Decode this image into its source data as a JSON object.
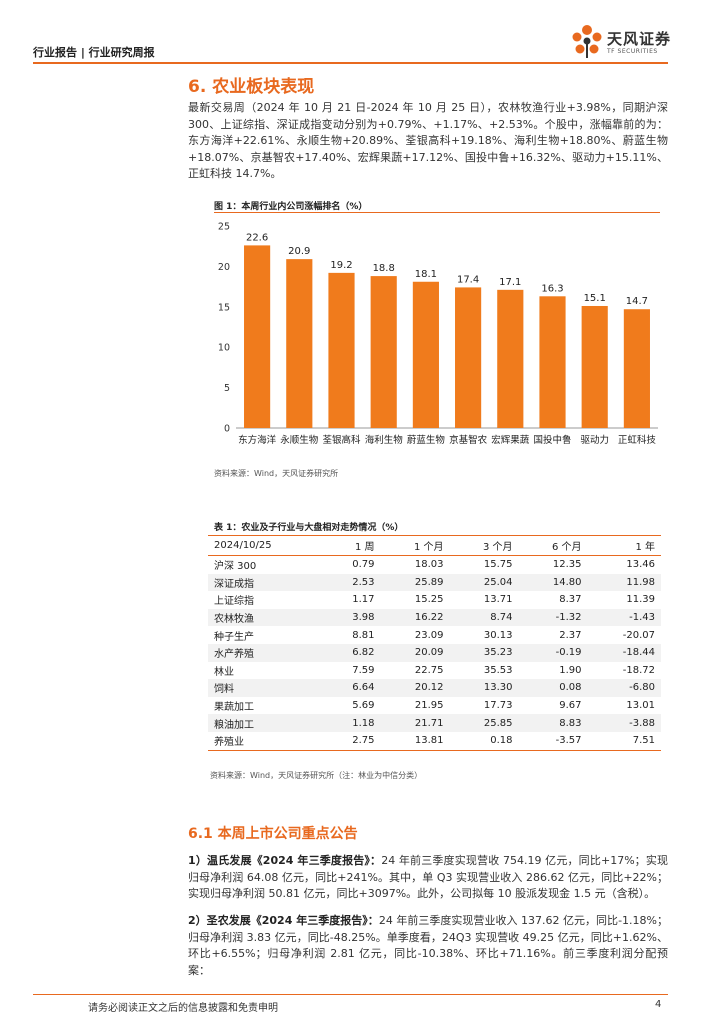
{
  "header": {
    "title": "行业报告 | 行业研究周报"
  },
  "logo": {
    "name_cn": "天风证券",
    "name_en": "TF SECURITIES"
  },
  "section": {
    "title": "6. 农业板块表现"
  },
  "paragraph1": "最新交易周（2024 年 10 月 21 日-2024 年 10 月 25 日），农林牧渔行业+3.98%，同期沪深 300、上证综指、深证成指变动分别为+0.79%、+1.17%、+2.53%。个股中，涨幅靠前的为：东方海洋+22.61%、永顺生物+20.89%、荃银高科+19.18%、海利生物+18.80%、蔚蓝生物+18.07%、京基智农+17.40%、宏辉果蔬+17.12%、国投中鲁+16.32%、驱动力+15.11%、正虹科技 14.7%。",
  "figure1": {
    "title": "图 1：本周行业内公司涨幅排名（%）",
    "source": "资料来源：Wind，天风证券研究所"
  },
  "chart_data": {
    "type": "bar",
    "title": "本周行业内公司涨幅排名（%）",
    "categories": [
      "东方海洋",
      "永顺生物",
      "荃银高科",
      "海利生物",
      "蔚蓝生物",
      "京基智农",
      "宏辉果蔬",
      "国投中鲁",
      "驱动力",
      "正虹科技"
    ],
    "values": [
      22.6,
      20.9,
      19.2,
      18.8,
      18.1,
      17.4,
      17.1,
      16.3,
      15.1,
      14.7
    ],
    "labels": [
      "22.6",
      "20.9",
      "19.2",
      "18.8",
      "18.1",
      "17.4",
      "17.1",
      "16.3",
      "15.1",
      "14.7"
    ],
    "yticks": [
      "0",
      "5",
      "10",
      "15",
      "20",
      "25"
    ],
    "ylim": [
      0,
      25
    ],
    "color": "#f07b1c"
  },
  "table1": {
    "title": "表 1：农业及子行业与大盘相对走势情况（%）",
    "headers": [
      "2024/10/25",
      "1 周",
      "1 个月",
      "3 个月",
      "6 个月",
      "1 年"
    ],
    "rows": [
      [
        "沪深 300",
        "0.79",
        "18.03",
        "15.75",
        "12.35",
        "13.46"
      ],
      [
        "深证成指",
        "2.53",
        "25.89",
        "25.04",
        "14.80",
        "11.98"
      ],
      [
        "上证综指",
        "1.17",
        "15.25",
        "13.71",
        "8.37",
        "11.39"
      ],
      [
        "农林牧渔",
        "3.98",
        "16.22",
        "8.74",
        "-1.32",
        "-1.43"
      ],
      [
        "种子生产",
        "8.81",
        "23.09",
        "30.13",
        "2.37",
        "-20.07"
      ],
      [
        "水产养殖",
        "6.82",
        "20.09",
        "35.23",
        "-0.19",
        "-18.44"
      ],
      [
        "林业",
        "7.59",
        "22.75",
        "35.53",
        "1.90",
        "-18.72"
      ],
      [
        "饲料",
        "6.64",
        "20.12",
        "13.30",
        "0.08",
        "-6.80"
      ],
      [
        "果蔬加工",
        "5.69",
        "21.95",
        "17.73",
        "9.67",
        "13.01"
      ],
      [
        "粮油加工",
        "1.18",
        "21.71",
        "25.85",
        "8.83",
        "-3.88"
      ],
      [
        "养殖业",
        "2.75",
        "13.81",
        "0.18",
        "-3.57",
        "7.51"
      ]
    ],
    "source": "资料来源：Wind，天风证券研究所（注：林业为中信分类）"
  },
  "subsection": {
    "title": "6.1 本周上市公司重点公告"
  },
  "announcement1": {
    "heading": "1）温氏发展《2024 年三季度报告》：",
    "body": "24 年前三季度实现营收 754.19 亿元，同比+17%；实现归母净利润 64.08 亿元，同比+241%。其中，单 Q3 实现营业收入 286.62 亿元，同比+22%；实现归母净利润 50.81 亿元，同比+3097%。此外，公司拟每 10 股派发现金 1.5 元（含税）。"
  },
  "announcement2": {
    "heading": "2）圣农发展《2024 年三季度报告》：",
    "body": "24 年前三季度实现营业收入 137.62 亿元，同比-1.18%；归母净利润 3.83 亿元，同比-48.25%。单季度看，24Q3 实现营收 49.25 亿元，同比+1.62%、环比+6.55%；归母净利润 2.81 亿元，同比-10.38%、环比+71.16%。前三季度利润分配预案："
  },
  "footer": {
    "disclaimer": "请务必阅读正文之后的信息披露和免责申明",
    "page": "4"
  }
}
